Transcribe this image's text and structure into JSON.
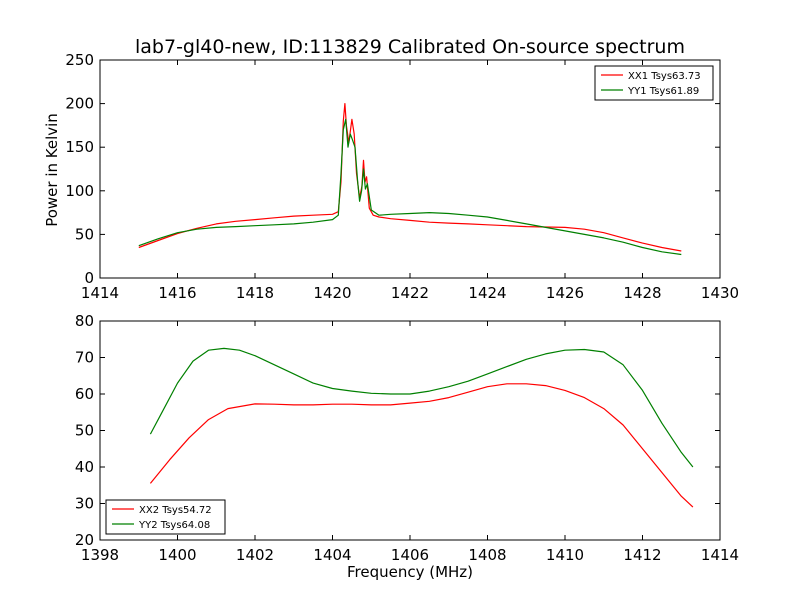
{
  "chart_data": [
    {
      "type": "line",
      "title": "lab7-gl40-new, ID:113829 Calibrated On-source spectrum",
      "ylabel": "Power in Kelvin",
      "xlabel": "",
      "xlim": [
        1414,
        1430
      ],
      "ylim": [
        0,
        250
      ],
      "xticks": [
        "1414",
        "1416",
        "1418",
        "1420",
        "1422",
        "1424",
        "1426",
        "1428",
        "1430"
      ],
      "yticks": [
        "0",
        "50",
        "100",
        "150",
        "200",
        "250"
      ],
      "legend_position": "top-right",
      "series": [
        {
          "name": "XX1 Tsys63.73",
          "color": "#ff0000",
          "x": [
            1415,
            1415.5,
            1416,
            1416.5,
            1417,
            1417.5,
            1418,
            1418.5,
            1419,
            1419.5,
            1420,
            1420.15,
            1420.22,
            1420.28,
            1420.32,
            1420.36,
            1420.42,
            1420.5,
            1420.56,
            1420.62,
            1420.7,
            1420.76,
            1420.8,
            1420.84,
            1420.88,
            1420.95,
            1421.05,
            1421.2,
            1421.5,
            1422,
            1422.5,
            1423,
            1423.5,
            1424,
            1424.5,
            1425,
            1425.5,
            1426,
            1426.5,
            1427,
            1427.5,
            1428,
            1428.5,
            1429
          ],
          "y": [
            35,
            43,
            51,
            57,
            62,
            65,
            67,
            69,
            71,
            72,
            73,
            76,
            110,
            180,
            200,
            175,
            155,
            182,
            165,
            120,
            92,
            105,
            135,
            110,
            116,
            80,
            72,
            70,
            68,
            66,
            64,
            63,
            62,
            61,
            60,
            59,
            58.5,
            58,
            56,
            52,
            46,
            40,
            35,
            31
          ]
        },
        {
          "name": "YY1 Tsys61.89",
          "color": "#008000",
          "x": [
            1415,
            1415.5,
            1416,
            1416.5,
            1417,
            1417.5,
            1418,
            1418.5,
            1419,
            1419.5,
            1420,
            1420.15,
            1420.22,
            1420.28,
            1420.34,
            1420.4,
            1420.46,
            1420.52,
            1420.58,
            1420.65,
            1420.7,
            1420.75,
            1420.8,
            1420.85,
            1420.9,
            1421,
            1421.2,
            1421.5,
            1422,
            1422.5,
            1423,
            1423.5,
            1424,
            1424.5,
            1425,
            1425.5,
            1426,
            1426.5,
            1427,
            1427.5,
            1428,
            1428.5,
            1429
          ],
          "y": [
            37,
            45,
            52,
            56,
            58,
            59,
            60,
            61,
            62,
            64,
            67,
            72,
            120,
            170,
            182,
            150,
            165,
            158,
            150,
            110,
            88,
            100,
            125,
            102,
            108,
            78,
            72,
            73,
            74,
            75,
            74,
            72,
            70,
            66,
            62,
            58,
            54,
            50,
            46,
            41,
            35,
            30,
            27
          ]
        }
      ]
    },
    {
      "type": "line",
      "title": "",
      "xlabel": "Frequency (MHz)",
      "ylabel": "",
      "xlim": [
        1398,
        1414
      ],
      "ylim": [
        20,
        80
      ],
      "xticks": [
        "1398",
        "1400",
        "1402",
        "1404",
        "1406",
        "1408",
        "1410",
        "1412",
        "1414"
      ],
      "yticks": [
        "20",
        "30",
        "40",
        "50",
        "60",
        "70",
        "80"
      ],
      "legend_position": "bottom-left",
      "series": [
        {
          "name": "XX2 Tsys54.72",
          "color": "#ff0000",
          "x": [
            1399.3,
            1399.8,
            1400.3,
            1400.8,
            1401.3,
            1402,
            1402.5,
            1403,
            1403.5,
            1404,
            1404.5,
            1405,
            1405.5,
            1406,
            1406.5,
            1407,
            1407.5,
            1408,
            1408.5,
            1409,
            1409.5,
            1410,
            1410.5,
            1411,
            1411.5,
            1412,
            1412.5,
            1413,
            1413.3
          ],
          "y": [
            35.5,
            42,
            48,
            53,
            56,
            57.3,
            57.2,
            57,
            57,
            57.2,
            57.2,
            57,
            57,
            57.5,
            58,
            59,
            60.5,
            62,
            62.8,
            62.8,
            62.3,
            61,
            59,
            56,
            51.5,
            45,
            38.5,
            32,
            29
          ]
        },
        {
          "name": "YY2 Tsys64.08",
          "color": "#008000",
          "x": [
            1399.3,
            1399.6,
            1400,
            1400.4,
            1400.8,
            1401.2,
            1401.6,
            1402,
            1402.5,
            1403,
            1403.5,
            1404,
            1404.5,
            1405,
            1405.5,
            1406,
            1406.5,
            1407,
            1407.5,
            1408,
            1408.5,
            1409,
            1409.5,
            1410,
            1410.5,
            1411,
            1411.5,
            1412,
            1412.5,
            1413,
            1413.3
          ],
          "y": [
            49,
            55,
            63,
            69,
            72,
            72.5,
            72,
            70.5,
            68,
            65.5,
            63,
            61.5,
            60.8,
            60.2,
            60,
            60,
            60.8,
            62,
            63.5,
            65.5,
            67.5,
            69.5,
            71,
            72,
            72.2,
            71.5,
            68,
            61,
            52,
            44,
            40
          ]
        }
      ]
    }
  ]
}
